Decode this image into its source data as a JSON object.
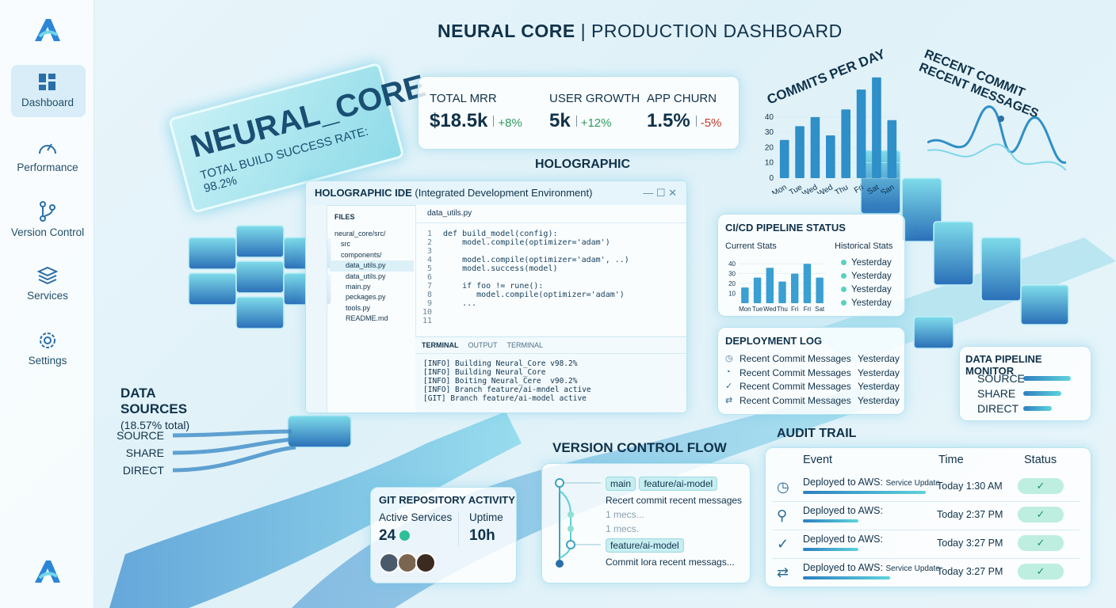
{
  "sidebar": {
    "items": [
      "Dashboard",
      "Performance",
      "Version Control",
      "Services",
      "Settings"
    ]
  },
  "header": {
    "title": "NEURAL CORE",
    "subtitle": "| PRODUCTION DASHBOARD"
  },
  "banner": {
    "title": "NEURAL_CORE",
    "subtitle": "TOTAL BUILD SUCCESS RATE: 98.2%"
  },
  "kpis": [
    {
      "label": "TOTAL MRR",
      "value": "$18.5k",
      "delta": "+8%"
    },
    {
      "label": "USER GROWTH",
      "value": "5k",
      "delta": "+12%"
    },
    {
      "label": "APP CHURN",
      "value": "1.5%",
      "delta": "-5%"
    }
  ],
  "holographic_label": "HOLOGRAPHIC",
  "chart_data": [
    {
      "type": "bar",
      "title": "COMMITS PER DAY",
      "categories": [
        "Mon",
        "Tue",
        "Wed",
        "Wed",
        "Thu",
        "Fri",
        "Sat",
        "San"
      ],
      "values": [
        25,
        34,
        40,
        28,
        45,
        58,
        66,
        38
      ],
      "color": "#2f8fc8",
      "ylim": [
        0,
        70
      ],
      "yticks": [
        0,
        10,
        20,
        30,
        40
      ]
    },
    {
      "type": "bar",
      "title": "CI/CD PIPELINE STATUS",
      "subtitle": "Current Stats",
      "categories": [
        "Mon",
        "Tue",
        "Wed",
        "Thu",
        "Fri",
        "Fri",
        "Sat"
      ],
      "values": [
        16,
        26,
        36,
        22,
        30,
        40,
        26
      ],
      "color": "#3a9fd2",
      "ylim": [
        0,
        45
      ],
      "yticks": [
        10,
        20,
        30,
        40
      ]
    }
  ],
  "recent_commits": {
    "title": "RECENT COMMIT",
    "subtitle": "RECENT MESSAGES"
  },
  "ide": {
    "title": "HOLOGRAPHIC IDE",
    "subtitle": "(Integrated Development Environment)",
    "files_label": "FILES",
    "files": [
      "neural_core/src/",
      "src",
      "components/",
      "data_utils.py",
      "data_utils.py",
      "main.py",
      "peckages.py",
      "tools.py",
      "README.md"
    ],
    "tab": "data_utils.py",
    "line_numbers": [
      1,
      2,
      3,
      4,
      5,
      6,
      7,
      8,
      9,
      10,
      11
    ],
    "code": [
      {
        "n": 1,
        "text": "def build_model(config):"
      },
      {
        "n": 2,
        "text": "    model.compile(optimizer='adam')"
      },
      {
        "n": 4,
        "text": "    model.compile(optimizer='adam', ..)"
      },
      {
        "n": 5,
        "text": "    model.success(model)"
      },
      {
        "n": 7,
        "text": "    if foo != rune():"
      },
      {
        "n": 8,
        "text": "       model.compile(optimizer='adam')"
      },
      {
        "n": 9,
        "text": "    ..."
      }
    ],
    "terminal_tabs": [
      "TERMINAL",
      "OUTPUT",
      "TERMINAL"
    ],
    "terminal": [
      "[INFO] Building Neural_Core v98.2%",
      "[INFO] Building Neural_Core",
      "[INFO] Boiting Neural_Cere  v90.2%",
      "[INFO] Branch feature/ai-mndel active",
      "[GIT] Branch feature/ai-model active"
    ]
  },
  "historical": {
    "title": "Historical Stats",
    "items": [
      "Yesterday",
      "Yesterday",
      "Yesterday",
      "Yesterday"
    ]
  },
  "deployment_log": {
    "title": "DEPLOYMENT LOG",
    "rows": [
      {
        "message": "Recent Commit Messages",
        "when": "Yesterday"
      },
      {
        "message": "Recent Commit Messages",
        "when": "Yesterday"
      },
      {
        "message": "Recent Commit Messages",
        "when": "Yesterday"
      },
      {
        "message": "Recent Commit Messages",
        "when": "Yesterday"
      }
    ]
  },
  "data_pipeline": {
    "title": "DATA PIPELINE MONITOR",
    "items": [
      "SOURCE",
      "SHARE",
      "DIRECT"
    ]
  },
  "data_sources": {
    "title": "DATA SOURCES",
    "subtitle": "(18.57% total)",
    "items": [
      "SOURCE",
      "SHARE",
      "DIRECT"
    ]
  },
  "git_activity": {
    "title": "GIT REPOSITORY ACTIVITY",
    "services_label": "Active Services",
    "services": "24",
    "uptime_label": "Uptime",
    "uptime": "10h"
  },
  "version_flow": {
    "title": "VERSION CONTROL FLOW",
    "branch_main": "main",
    "branch_feature": "feature/ai-model",
    "commit1": "Recert commit recent messages",
    "meta1": "1 mecs...",
    "meta2": "1 mecs.",
    "branch_feature2": "feature/ai-model",
    "commit2": "Commit lora recent messags..."
  },
  "audit": {
    "title": "AUDIT TRAIL",
    "headers": [
      "Event",
      "Time",
      "Status"
    ],
    "rows": [
      {
        "event": "Deployed to AWS:",
        "note": "Service Update",
        "time": "Today 1:30 AM"
      },
      {
        "event": "Deployed to AWS:",
        "time": "Today 2:37 PM"
      },
      {
        "event": "Deployed to AWS:",
        "time": "Today 3:27 PM"
      },
      {
        "event": "Deployed to AWS:",
        "note": "Service Update",
        "time": "Today 3:27 PM"
      }
    ]
  }
}
